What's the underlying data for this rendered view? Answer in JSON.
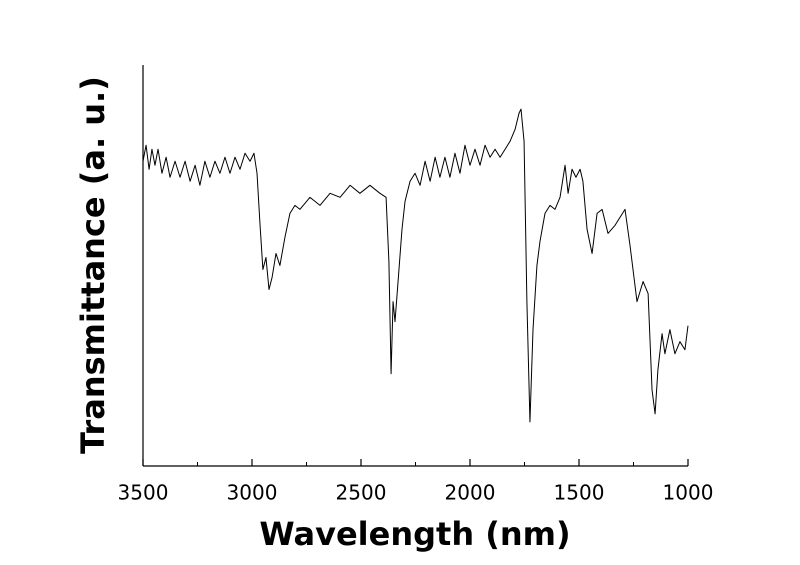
{
  "chart_data": {
    "type": "line",
    "xlabel": "Wavelength (nm)",
    "ylabel": "Transmittance (a. u.)",
    "color": "#000000",
    "xlim": [
      3500,
      1000
    ],
    "xticks": [
      3500,
      3000,
      2500,
      2000,
      1500,
      1000
    ],
    "xminorticks": [
      3250,
      2750,
      2250,
      1750,
      1250
    ],
    "ylim": [
      0,
      100
    ],
    "x": [
      3500,
      3486,
      3472,
      3459,
      3445,
      3431,
      3413,
      3394,
      3376,
      3353,
      3330,
      3307,
      3284,
      3261,
      3239,
      3216,
      3193,
      3170,
      3147,
      3124,
      3101,
      3078,
      3055,
      3032,
      3009,
      2991,
      2977,
      2963,
      2950,
      2936,
      2922,
      2908,
      2890,
      2872,
      2849,
      2826,
      2803,
      2780,
      2734,
      2688,
      2642,
      2596,
      2550,
      2505,
      2459,
      2413,
      2385,
      2372,
      2362,
      2353,
      2344,
      2330,
      2312,
      2298,
      2275,
      2252,
      2229,
      2206,
      2183,
      2160,
      2138,
      2115,
      2092,
      2069,
      2046,
      2023,
      2000,
      1977,
      1954,
      1931,
      1908,
      1885,
      1862,
      1839,
      1816,
      1793,
      1775,
      1766,
      1752,
      1739,
      1725,
      1711,
      1693,
      1679,
      1656,
      1633,
      1610,
      1587,
      1564,
      1550,
      1532,
      1514,
      1495,
      1482,
      1463,
      1440,
      1417,
      1394,
      1367,
      1335,
      1289,
      1266,
      1234,
      1206,
      1183,
      1165,
      1151,
      1138,
      1119,
      1106,
      1083,
      1060,
      1037,
      1014,
      1000
    ],
    "values": [
      76,
      80,
      74,
      79,
      75,
      79,
      73,
      77,
      72,
      76,
      72,
      76,
      71,
      75,
      70,
      76,
      72,
      76,
      73,
      77,
      73,
      77,
      74,
      78,
      76,
      78,
      73,
      60,
      49,
      52,
      44,
      47,
      53,
      50,
      57,
      63,
      65,
      64,
      67,
      65,
      68,
      67,
      70,
      68,
      70,
      68,
      67,
      51,
      23,
      41,
      36,
      46,
      59,
      66,
      71,
      73,
      70,
      76,
      71,
      77,
      72,
      77,
      72,
      78,
      73,
      80,
      75,
      79,
      75,
      80,
      77,
      79,
      77,
      79,
      81,
      84,
      88,
      89,
      81,
      41,
      11,
      34,
      50,
      56,
      63,
      65,
      64,
      67,
      75,
      68,
      74,
      72,
      74,
      71,
      59,
      53,
      63,
      64,
      58,
      60,
      64,
      55,
      41,
      46,
      43,
      19,
      13,
      24,
      33,
      28,
      34,
      28,
      31,
      29,
      35
    ]
  }
}
